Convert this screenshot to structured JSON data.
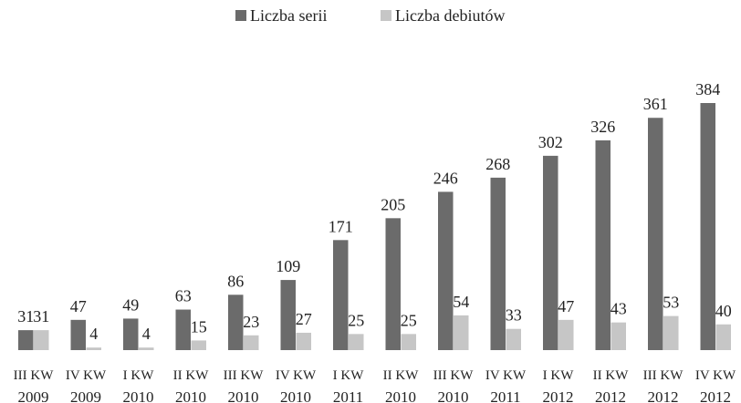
{
  "chart_data": {
    "type": "bar",
    "categories": [
      [
        "III KW",
        "2009"
      ],
      [
        "IV KW",
        "2009"
      ],
      [
        "I KW",
        "2010"
      ],
      [
        "II KW",
        "2010"
      ],
      [
        "III KW",
        "2010"
      ],
      [
        "IV KW",
        "2010"
      ],
      [
        "I KW",
        "2011"
      ],
      [
        "II KW",
        "2010"
      ],
      [
        "III KW",
        "2010"
      ],
      [
        "IV KW",
        "2011"
      ],
      [
        "I KW",
        "2012"
      ],
      [
        "II KW",
        "2012"
      ],
      [
        "III KW",
        "2012"
      ],
      [
        "IV KW",
        "2012"
      ]
    ],
    "series": [
      {
        "name": "Liczba serii",
        "color": "#6b6b6b",
        "values": [
          31,
          47,
          49,
          63,
          86,
          109,
          171,
          205,
          246,
          268,
          302,
          326,
          361,
          384
        ]
      },
      {
        "name": "Liczba debiutów",
        "color": "#c6c6c6",
        "values": [
          31,
          4,
          4,
          15,
          23,
          27,
          25,
          25,
          54,
          33,
          47,
          43,
          53,
          40
        ]
      }
    ],
    "legend": "top"
  }
}
